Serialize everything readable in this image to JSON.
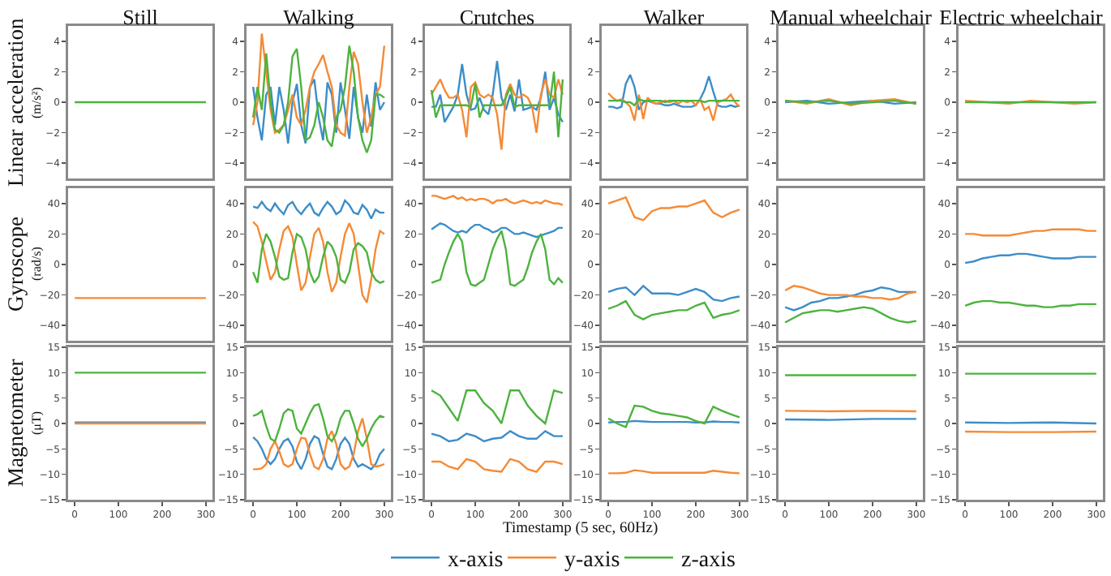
{
  "chart_data": [
    {
      "type": "line",
      "title": "Still",
      "ylabel": "Linear acceleration\n(m/s²)",
      "x": [
        0,
        100,
        200,
        300
      ],
      "xlim": [
        -15,
        315
      ],
      "ylim": [
        -5,
        5
      ],
      "yticks": [
        {
          "value": -4,
          "label": "−4"
        },
        {
          "value": -2,
          "label": "−2"
        },
        0,
        2,
        4
      ],
      "tick_labels": "y",
      "series": [
        {
          "color": "#4cb33e",
          "values": [
            0,
            0,
            0,
            0
          ]
        }
      ]
    },
    {
      "type": "line",
      "title": "Walking",
      "x": [
        0,
        10,
        20,
        30,
        40,
        50,
        60,
        70,
        80,
        90,
        100,
        110,
        120,
        130,
        140,
        150,
        160,
        170,
        180,
        190,
        200,
        210,
        220,
        230,
        240,
        250,
        260,
        270,
        280,
        290,
        300
      ],
      "xlim": [
        -15,
        315
      ],
      "ylim": [
        -5,
        5
      ],
      "yticks": [
        {
          "value": -4,
          "label": "−4"
        },
        {
          "value": -2,
          "label": "−2"
        },
        0,
        2,
        4
      ],
      "tick_labels": "y",
      "series": [
        {
          "color": "#3c8dc8",
          "values": [
            1,
            -1,
            -2.5,
            0.5,
            1,
            -1.5,
            1,
            -0.5,
            -2.7,
            0,
            1.2,
            -1.5,
            -2.7,
            1,
            1.5,
            -1,
            -2.5,
            1.3,
            0.5,
            -2,
            1.3,
            -0.5,
            -2.4,
            1,
            -1,
            -2,
            0.5,
            -1.6,
            1.3,
            -0.5,
            0
          ]
        },
        {
          "color": "#f58a35",
          "values": [
            -1.5,
            0,
            4.5,
            2,
            -0.5,
            -2,
            -1.8,
            -1.5,
            -0.5,
            0.5,
            -1,
            -1.5,
            -0.5,
            1,
            2,
            2.5,
            3.1,
            2,
            1,
            -1.5,
            -2,
            -2.2,
            1,
            3.3,
            2.5,
            0,
            -2,
            -1,
            0.5,
            1,
            3.7
          ]
        },
        {
          "color": "#4cb33e",
          "values": [
            -1,
            1,
            -0.5,
            3.2,
            0,
            -1.8,
            -2,
            -1.5,
            0,
            3,
            3.5,
            1,
            -2.5,
            -2.3,
            -1.5,
            0,
            -1,
            -2.5,
            -2.9,
            -1,
            -0.5,
            1,
            3.7,
            2,
            -1,
            -2.5,
            -3.3,
            -2.5,
            0.5,
            0.5,
            0.3
          ]
        }
      ]
    },
    {
      "type": "line",
      "title": "Crutches",
      "x": [
        0,
        10,
        20,
        30,
        40,
        50,
        60,
        70,
        80,
        90,
        100,
        110,
        120,
        130,
        140,
        150,
        160,
        170,
        180,
        190,
        200,
        210,
        220,
        230,
        240,
        250,
        260,
        270,
        280,
        290,
        300
      ],
      "xlim": [
        -15,
        315
      ],
      "ylim": [
        -5,
        5
      ],
      "yticks": [
        {
          "value": -4,
          "label": "−4"
        },
        {
          "value": -2,
          "label": "−2"
        },
        0,
        2,
        4
      ],
      "tick_labels": "y",
      "series": [
        {
          "color": "#3c8dc8",
          "values": [
            -0.3,
            -0.3,
            0.5,
            -1.3,
            -0.8,
            -0.3,
            0.5,
            2.5,
            0.5,
            -0.5,
            -0.4,
            0.3,
            -0.5,
            -0.8,
            0.5,
            2.7,
            0.3,
            -0.5,
            0.5,
            -0.6,
            1.5,
            -0.5,
            -0.4,
            -0.3,
            -0.5,
            0.3,
            2,
            -0.5,
            0.3,
            -0.8,
            -1.3
          ]
        },
        {
          "color": "#f58a35",
          "values": [
            0.5,
            1,
            1.5,
            0.8,
            0.3,
            0.3,
            0.5,
            -0.5,
            -2.3,
            1,
            1.3,
            0.5,
            0.3,
            0.5,
            0.3,
            -0.8,
            -3.1,
            0.5,
            1.2,
            0.5,
            0.3,
            0.5,
            0.3,
            -0.3,
            -2,
            0.5,
            1.5,
            0.5,
            0.3,
            1.5,
            0.5
          ]
        },
        {
          "color": "#4cb33e",
          "values": [
            0.8,
            -1,
            -0.2,
            -0.2,
            -0.2,
            -0.2,
            -0.2,
            -0.2,
            -0.2,
            -0.3,
            1.2,
            -1,
            -0.2,
            -0.2,
            -0.2,
            -0.2,
            -0.2,
            0.3,
            1,
            -0.3,
            -0.2,
            -0.2,
            -0.2,
            -0.2,
            -0.2,
            -0.2,
            -0.2,
            -0.2,
            2,
            -2.3,
            1.5
          ]
        }
      ]
    },
    {
      "type": "line",
      "title": "Walker",
      "x": [
        0,
        10,
        20,
        30,
        40,
        50,
        60,
        70,
        80,
        90,
        100,
        110,
        120,
        130,
        140,
        150,
        160,
        170,
        180,
        190,
        200,
        210,
        220,
        230,
        240,
        250,
        260,
        270,
        280,
        290,
        300
      ],
      "xlim": [
        -15,
        315
      ],
      "ylim": [
        -5,
        5
      ],
      "yticks": [
        {
          "value": -4,
          "label": "−4"
        },
        {
          "value": -2,
          "label": "−2"
        },
        0,
        2,
        4
      ],
      "tick_labels": "y",
      "series": [
        {
          "color": "#3c8dc8",
          "values": [
            -0.3,
            -0.3,
            -0.4,
            -0.3,
            1.2,
            1.8,
            1,
            -0.5,
            0,
            0.1,
            0,
            -0.1,
            -0.1,
            -0.2,
            -0.2,
            -0.1,
            -0.2,
            -0.3,
            -0.3,
            -0.3,
            -0.2,
            0.2,
            0.8,
            1.7,
            0.7,
            -0.2,
            -0.3,
            -0.3,
            -0.2,
            -0.3,
            -0.2
          ]
        },
        {
          "color": "#f58a35",
          "values": [
            0.6,
            0.3,
            0.1,
            0.2,
            0,
            -0.3,
            -1.2,
            0.5,
            -1.1,
            0.3,
            0,
            -0.1,
            0,
            0.1,
            0,
            0.1,
            -0.1,
            0.1,
            0,
            0.1,
            -0.2,
            0.2,
            -0.5,
            -0.3,
            -1.2,
            0,
            0.1,
            0.2,
            0.5,
            0,
            -0.3
          ]
        },
        {
          "color": "#4cb33e",
          "values": [
            0.1,
            0.1,
            0.1,
            0.1,
            0,
            0,
            -0.2,
            0.2,
            0.1,
            0.1,
            0.1,
            0.1,
            0.1,
            0,
            0.1,
            0.1,
            0.1,
            0.1,
            0.1,
            0.1,
            0.1,
            0.1,
            0,
            0.1,
            0.1,
            0.1,
            0.1,
            0.1,
            0.1,
            0.1,
            0.1
          ]
        }
      ]
    },
    {
      "type": "line",
      "title": "Manual wheelchair",
      "x": [
        0,
        50,
        100,
        150,
        200,
        250,
        300
      ],
      "xlim": [
        -15,
        315
      ],
      "ylim": [
        -5,
        5
      ],
      "yticks": [
        {
          "value": -4,
          "label": "−4"
        },
        {
          "value": -2,
          "label": "−2"
        },
        0,
        2,
        4
      ],
      "tick_labels": "y",
      "series": [
        {
          "color": "#3c8dc8",
          "values": [
            0,
            0.1,
            -0.1,
            0,
            0.1,
            -0.1,
            0
          ]
        },
        {
          "color": "#f58a35",
          "values": [
            0.1,
            -0.1,
            0.2,
            -0.2,
            0.1,
            0.2,
            -0.1
          ]
        },
        {
          "color": "#4cb33e",
          "values": [
            0.1,
            0,
            0.1,
            -0.1,
            0,
            0.1,
            -0.1
          ]
        }
      ]
    },
    {
      "type": "line",
      "title": "Electric wheelchair",
      "x": [
        0,
        50,
        100,
        150,
        200,
        250,
        300
      ],
      "xlim": [
        -15,
        315
      ],
      "ylim": [
        -5,
        5
      ],
      "yticks": [
        {
          "value": -4,
          "label": "−4"
        },
        {
          "value": -2,
          "label": "−2"
        },
        0,
        2,
        4
      ],
      "tick_labels": "y",
      "series": [
        {
          "color": "#f58a35",
          "values": [
            0.1,
            0,
            -0.1,
            0.1,
            0,
            -0.1,
            0
          ]
        },
        {
          "color": "#4cb33e",
          "values": [
            0,
            0,
            0,
            0,
            0,
            0,
            0
          ]
        }
      ]
    },
    {
      "type": "line",
      "ylabel": "Gyroscope\n(rad/s)",
      "x": [
        0,
        100,
        200,
        300
      ],
      "xlim": [
        -15,
        315
      ],
      "ylim": [
        -50,
        50
      ],
      "yticks": [
        {
          "value": -40,
          "label": "−40"
        },
        {
          "value": -20,
          "label": "−20"
        },
        0,
        20,
        40
      ],
      "tick_labels": "y",
      "series": [
        {
          "color": "#f58a35",
          "values": [
            -22,
            -22,
            -22,
            -22
          ]
        }
      ]
    },
    {
      "type": "line",
      "x": [
        0,
        10,
        20,
        30,
        40,
        50,
        60,
        70,
        80,
        90,
        100,
        110,
        120,
        130,
        140,
        150,
        160,
        170,
        180,
        190,
        200,
        210,
        220,
        230,
        240,
        250,
        260,
        270,
        280,
        290,
        300
      ],
      "xlim": [
        -15,
        315
      ],
      "ylim": [
        -50,
        50
      ],
      "yticks": [
        {
          "value": -40,
          "label": "−40"
        },
        {
          "value": -20,
          "label": "−20"
        },
        0,
        20,
        40
      ],
      "tick_labels": "y",
      "series": [
        {
          "color": "#3c8dc8",
          "values": [
            38,
            37,
            41,
            37,
            35,
            40,
            36,
            33,
            39,
            41,
            36,
            33,
            37,
            40,
            34,
            32,
            37,
            41,
            38,
            33,
            35,
            42,
            39,
            34,
            33,
            39,
            36,
            30,
            36,
            34,
            34
          ]
        },
        {
          "color": "#f58a35",
          "values": [
            28,
            25,
            15,
            2,
            -10,
            -5,
            10,
            22,
            25,
            18,
            0,
            -17,
            -12,
            5,
            20,
            24,
            15,
            -5,
            -18,
            -12,
            5,
            20,
            27,
            20,
            0,
            -20,
            -25,
            -10,
            10,
            22,
            20
          ]
        },
        {
          "color": "#4cb33e",
          "values": [
            -5,
            -12,
            10,
            20,
            15,
            5,
            -8,
            -10,
            -9,
            8,
            20,
            18,
            10,
            -5,
            -12,
            -8,
            5,
            15,
            12,
            5,
            -10,
            -12,
            -5,
            10,
            14,
            12,
            8,
            -5,
            -10,
            -12,
            -11
          ]
        }
      ]
    },
    {
      "type": "line",
      "x": [
        0,
        10,
        20,
        30,
        40,
        50,
        60,
        70,
        80,
        90,
        100,
        110,
        120,
        130,
        140,
        150,
        160,
        170,
        180,
        190,
        200,
        210,
        220,
        230,
        240,
        250,
        260,
        270,
        280,
        290,
        300
      ],
      "xlim": [
        -15,
        315
      ],
      "ylim": [
        -50,
        50
      ],
      "yticks": [
        {
          "value": -40,
          "label": "−40"
        },
        {
          "value": -20,
          "label": "−20"
        },
        0,
        20,
        40
      ],
      "tick_labels": "y",
      "series": [
        {
          "color": "#3c8dc8",
          "values": [
            23,
            25,
            27,
            26,
            24,
            22,
            21,
            22,
            21,
            24,
            26,
            26,
            24,
            23,
            21,
            22,
            24,
            24,
            22,
            20,
            20,
            21,
            20,
            19,
            18,
            19,
            20,
            21,
            22,
            24,
            24
          ]
        },
        {
          "color": "#f58a35",
          "values": [
            45,
            45,
            44,
            43,
            44,
            45,
            43,
            44,
            42,
            43,
            42,
            43,
            43,
            42,
            40,
            42,
            42,
            43,
            41,
            40,
            41,
            42,
            41,
            40,
            41,
            40,
            42,
            41,
            40,
            40,
            39
          ]
        },
        {
          "color": "#4cb33e",
          "values": [
            -12,
            -11,
            -10,
            0,
            8,
            15,
            20,
            15,
            -5,
            -13,
            -14,
            -12,
            -10,
            0,
            10,
            17,
            22,
            10,
            -13,
            -14,
            -12,
            -10,
            -2,
            8,
            15,
            20,
            10,
            -10,
            -13,
            -9,
            -12
          ]
        }
      ]
    },
    {
      "type": "line",
      "x": [
        0,
        20,
        40,
        60,
        80,
        100,
        120,
        140,
        160,
        180,
        200,
        220,
        240,
        260,
        280,
        300
      ],
      "xlim": [
        -15,
        315
      ],
      "ylim": [
        -50,
        50
      ],
      "yticks": [
        {
          "value": -40,
          "label": "−40"
        },
        {
          "value": -20,
          "label": "−20"
        },
        0,
        20,
        40
      ],
      "tick_labels": "y",
      "series": [
        {
          "color": "#3c8dc8",
          "values": [
            -18,
            -16,
            -15,
            -20,
            -14,
            -19,
            -19,
            -19,
            -20,
            -18,
            -16,
            -18,
            -23,
            -24,
            -22,
            -21
          ]
        },
        {
          "color": "#f58a35",
          "values": [
            40,
            42,
            44,
            31,
            29,
            35,
            37,
            37,
            38,
            38,
            40,
            42,
            34,
            31,
            34,
            36
          ]
        },
        {
          "color": "#4cb33e",
          "values": [
            -29,
            -27,
            -24,
            -33,
            -36,
            -33,
            -32,
            -31,
            -30,
            -30,
            -27,
            -25,
            -35,
            -33,
            -32,
            -30
          ]
        }
      ]
    },
    {
      "type": "line",
      "x": [
        0,
        20,
        40,
        60,
        80,
        100,
        120,
        140,
        160,
        180,
        200,
        220,
        240,
        260,
        280,
        300
      ],
      "xlim": [
        -15,
        315
      ],
      "ylim": [
        -50,
        50
      ],
      "yticks": [
        {
          "value": -40,
          "label": "−40"
        },
        {
          "value": -20,
          "label": "−20"
        },
        0,
        20,
        40
      ],
      "tick_labels": "y",
      "series": [
        {
          "color": "#3c8dc8",
          "values": [
            -28,
            -30,
            -28,
            -25,
            -24,
            -22,
            -22,
            -21,
            -20,
            -18,
            -17,
            -15,
            -16,
            -18,
            -18,
            -18
          ]
        },
        {
          "color": "#f58a35",
          "values": [
            -17,
            -14,
            -15,
            -17,
            -19,
            -20,
            -20,
            -20,
            -21,
            -21,
            -22,
            -22,
            -23,
            -22,
            -19,
            -18
          ]
        },
        {
          "color": "#4cb33e",
          "values": [
            -38,
            -35,
            -32,
            -31,
            -30,
            -30,
            -31,
            -30,
            -29,
            -28,
            -29,
            -32,
            -35,
            -37,
            -38,
            -37
          ]
        }
      ]
    },
    {
      "type": "line",
      "x": [
        0,
        20,
        40,
        60,
        80,
        100,
        120,
        140,
        160,
        180,
        200,
        220,
        240,
        260,
        280,
        300
      ],
      "xlim": [
        -15,
        315
      ],
      "ylim": [
        -50,
        50
      ],
      "yticks": [
        {
          "value": -40,
          "label": "−40"
        },
        {
          "value": -20,
          "label": "−20"
        },
        0,
        20,
        40
      ],
      "tick_labels": "y",
      "series": [
        {
          "color": "#3c8dc8",
          "values": [
            1,
            2,
            4,
            5,
            6,
            6,
            7,
            7,
            6,
            5,
            4,
            4,
            4,
            5,
            5,
            5
          ]
        },
        {
          "color": "#f58a35",
          "values": [
            20,
            20,
            19,
            19,
            19,
            19,
            20,
            21,
            22,
            22,
            23,
            23,
            23,
            23,
            22,
            22
          ]
        },
        {
          "color": "#4cb33e",
          "values": [
            -27,
            -25,
            -24,
            -24,
            -25,
            -25,
            -26,
            -27,
            -27,
            -28,
            -28,
            -27,
            -27,
            -26,
            -26,
            -26
          ]
        }
      ]
    },
    {
      "type": "line",
      "ylabel": "Magnetometer\n(μT)",
      "x": [
        0,
        100,
        200,
        300
      ],
      "xlim": [
        -15,
        315
      ],
      "xticks": [
        0,
        100,
        200,
        300
      ],
      "ylim": [
        -15,
        15
      ],
      "yticks": [
        {
          "value": -15,
          "label": "−15"
        },
        {
          "value": -10,
          "label": "−10"
        },
        {
          "value": -5,
          "label": "−5"
        },
        0,
        5,
        10,
        15
      ],
      "series": [
        {
          "color": "#3c8dc8",
          "values": [
            0.2,
            0.2,
            0.2,
            0.2
          ]
        },
        {
          "color": "#f58a35",
          "values": [
            0,
            0,
            0,
            0
          ]
        },
        {
          "color": "#4cb33e",
          "values": [
            10,
            10,
            10,
            10
          ]
        }
      ]
    },
    {
      "type": "line",
      "x": [
        0,
        10,
        20,
        30,
        40,
        50,
        60,
        70,
        80,
        90,
        100,
        110,
        120,
        130,
        140,
        150,
        160,
        170,
        180,
        190,
        200,
        210,
        220,
        230,
        240,
        250,
        260,
        270,
        280,
        290,
        300
      ],
      "xlim": [
        -15,
        315
      ],
      "xticks": [
        0,
        100,
        200,
        300
      ],
      "ylim": [
        -15,
        15
      ],
      "yticks": [
        {
          "value": -15,
          "label": "−15"
        },
        {
          "value": -10,
          "label": "−10"
        },
        {
          "value": -5,
          "label": "−5"
        },
        0,
        5,
        10,
        15
      ],
      "series": [
        {
          "color": "#3c8dc8",
          "values": [
            -2.7,
            -3.5,
            -5,
            -7,
            -8,
            -7,
            -5,
            -3.5,
            -3,
            -4.5,
            -7.5,
            -9,
            -7,
            -4,
            -2.5,
            -3,
            -6,
            -8.5,
            -9,
            -7,
            -4,
            -2.8,
            -4,
            -7,
            -8.5,
            -8,
            -8.5,
            -9,
            -8,
            -6,
            -5
          ]
        },
        {
          "color": "#f58a35",
          "values": [
            -9,
            -9,
            -8.8,
            -8,
            -5,
            -3.5,
            -5.5,
            -8,
            -8.5,
            -8,
            -5,
            -2.8,
            -3,
            -6,
            -8.5,
            -9,
            -7,
            -3,
            -1.5,
            -4,
            -8,
            -9,
            -8.5,
            -6,
            -1.5,
            1,
            -3,
            -8,
            -8.5,
            -8.3,
            -8
          ]
        },
        {
          "color": "#4cb33e",
          "values": [
            1.5,
            1.8,
            2.5,
            -0.5,
            -3,
            -3.5,
            -1,
            2,
            2.8,
            2.5,
            -1,
            -2,
            0,
            2,
            3.5,
            3.8,
            1,
            -2.5,
            -3.5,
            -2,
            1,
            2.5,
            2.5,
            0,
            -3,
            -4.5,
            -3,
            -1,
            0.5,
            1.5,
            1.2
          ]
        }
      ]
    },
    {
      "type": "line",
      "xlabel": "Timestamp (5 sec, 60Hz)",
      "legend": "bottom",
      "x": [
        0,
        20,
        40,
        60,
        80,
        100,
        120,
        140,
        160,
        180,
        200,
        220,
        240,
        260,
        280,
        300
      ],
      "xlim": [
        -15,
        315
      ],
      "xticks": [
        0,
        100,
        200,
        300
      ],
      "ylim": [
        -15,
        15
      ],
      "yticks": [
        {
          "value": -15,
          "label": "−15"
        },
        {
          "value": -10,
          "label": "−10"
        },
        {
          "value": -5,
          "label": "−5"
        },
        0,
        5,
        10,
        15
      ],
      "series": [
        {
          "name": "x-axis",
          "color": "#3c8dc8",
          "values": [
            -2,
            -2.5,
            -3.5,
            -3.2,
            -2,
            -2.5,
            -3.5,
            -3,
            -2.8,
            -1.5,
            -2.5,
            -3,
            -3,
            -1.5,
            -2.5,
            -2.5
          ]
        },
        {
          "name": "y-axis",
          "color": "#f58a35",
          "values": [
            -7.5,
            -7.5,
            -8.5,
            -9,
            -7,
            -7.5,
            -9,
            -9.3,
            -9.5,
            -7,
            -7.5,
            -9,
            -9.5,
            -7.5,
            -7.5,
            -8
          ]
        },
        {
          "name": "z-axis",
          "color": "#4cb33e",
          "values": [
            6.5,
            5.5,
            3,
            0.5,
            6.5,
            6.5,
            4,
            2.5,
            0,
            6.5,
            6.5,
            3.5,
            1.5,
            0,
            6.5,
            6
          ]
        }
      ]
    },
    {
      "type": "line",
      "x": [
        0,
        20,
        40,
        60,
        80,
        100,
        120,
        140,
        160,
        180,
        200,
        220,
        240,
        260,
        280,
        300
      ],
      "xlim": [
        -15,
        315
      ],
      "xticks": [
        0,
        100,
        200,
        300
      ],
      "ylim": [
        -15,
        15
      ],
      "yticks": [
        {
          "value": -15,
          "label": "−15"
        },
        {
          "value": -10,
          "label": "−10"
        },
        {
          "value": -5,
          "label": "−5"
        },
        0,
        5,
        10,
        15
      ],
      "series": [
        {
          "color": "#3c8dc8",
          "values": [
            0.2,
            0.3,
            0.3,
            0.5,
            0.4,
            0.3,
            0.3,
            0.3,
            0.3,
            0.3,
            0.2,
            0.2,
            0.4,
            0.3,
            0.3,
            0.2
          ]
        },
        {
          "color": "#f58a35",
          "values": [
            -9.8,
            -9.8,
            -9.7,
            -9.2,
            -9.4,
            -9.7,
            -9.7,
            -9.7,
            -9.7,
            -9.7,
            -9.7,
            -9.7,
            -9.3,
            -9.5,
            -9.7,
            -9.8
          ]
        },
        {
          "color": "#4cb33e",
          "values": [
            1,
            0,
            -0.7,
            3.5,
            3.3,
            2.5,
            2,
            1.8,
            1.5,
            1.2,
            0.5,
            0,
            3.3,
            2.5,
            1.8,
            1.2
          ]
        }
      ]
    },
    {
      "type": "line",
      "x": [
        0,
        100,
        200,
        300
      ],
      "xlim": [
        -15,
        315
      ],
      "xticks": [
        0,
        100,
        200,
        300
      ],
      "ylim": [
        -15,
        15
      ],
      "yticks": [
        {
          "value": -15,
          "label": "−15"
        },
        {
          "value": -10,
          "label": "−10"
        },
        {
          "value": -5,
          "label": "−5"
        },
        0,
        5,
        10,
        15
      ],
      "series": [
        {
          "color": "#3c8dc8",
          "values": [
            0.8,
            0.7,
            0.9,
            0.9
          ]
        },
        {
          "color": "#f58a35",
          "values": [
            2.5,
            2.4,
            2.5,
            2.4
          ]
        },
        {
          "color": "#4cb33e",
          "values": [
            9.5,
            9.5,
            9.5,
            9.5
          ]
        }
      ]
    },
    {
      "type": "line",
      "x": [
        0,
        100,
        200,
        300
      ],
      "xlim": [
        -15,
        315
      ],
      "xticks": [
        0,
        100,
        200,
        300
      ],
      "ylim": [
        -15,
        15
      ],
      "yticks": [
        {
          "value": -15,
          "label": "−15"
        },
        {
          "value": -10,
          "label": "−10"
        },
        {
          "value": -5,
          "label": "−5"
        },
        0,
        5,
        10,
        15
      ],
      "series": [
        {
          "color": "#3c8dc8",
          "values": [
            0.2,
            0.1,
            0.2,
            0
          ]
        },
        {
          "color": "#f58a35",
          "values": [
            -1.6,
            -1.7,
            -1.7,
            -1.6
          ]
        },
        {
          "color": "#4cb33e",
          "values": [
            9.8,
            9.8,
            9.8,
            9.8
          ]
        }
      ]
    }
  ]
}
